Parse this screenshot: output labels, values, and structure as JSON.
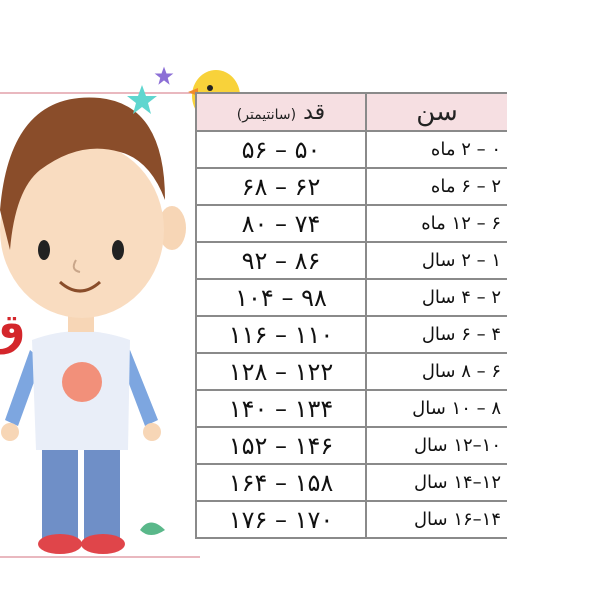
{
  "table": {
    "headers": {
      "age": "سن",
      "height": "قد",
      "height_unit": "(سانتیمتر)"
    },
    "rows": [
      {
        "age": "۰ – ۲ ماه",
        "height": "۵۰ – ۵۶"
      },
      {
        "age": "۲ – ۶ ماه",
        "height": "۶۲ – ۶۸"
      },
      {
        "age": "۶ – ۱۲ ماه",
        "height": "۷۴ – ۸۰"
      },
      {
        "age": "۱ – ۲ سال",
        "height": "۸۶ – ۹۲"
      },
      {
        "age": "۲ – ۴ سال",
        "height": "۹۸ – ۱۰۴"
      },
      {
        "age": "۴ – ۶ سال",
        "height": "۱۱۰ – ۱۱۶"
      },
      {
        "age": "۶ – ۸ سال",
        "height": "۱۲۲ – ۱۲۸"
      },
      {
        "age": "۸ – ۱۰ سال",
        "height": "۱۳۴ – ۱۴۰"
      },
      {
        "age": "۱۰–۱۲ سال",
        "height": "۱۴۶ – ۱۵۲"
      },
      {
        "age": "۱۲–۱۴ سال",
        "height": "۱۵۸ – ۱۶۴"
      },
      {
        "age": "۱۴–۱۶ سال",
        "height": "۱۷۰ – ۱۷۶"
      }
    ]
  },
  "side_label": "ق",
  "colors": {
    "header_bg": "#f6dfe2",
    "accent_red": "#d4262b",
    "frame_pink": "#e9b8bf"
  }
}
